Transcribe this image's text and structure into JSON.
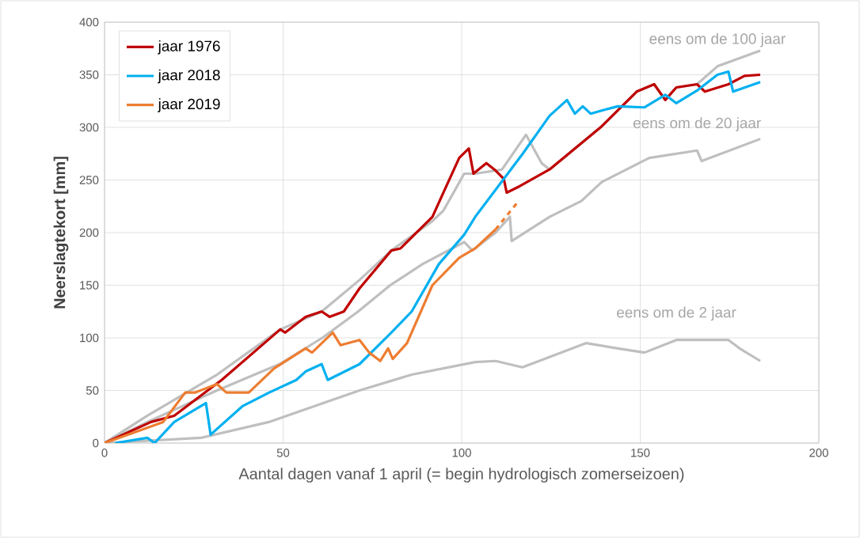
{
  "chart_data": {
    "type": "line",
    "xlabel": "Aantal dagen vanaf 1 april (= begin hydrologisch zomerseizoen)",
    "ylabel": "Neerslagtekort [mm]",
    "xlim": [
      0,
      200
    ],
    "xticks": [
      0,
      50,
      100,
      150,
      200
    ],
    "ylim": [
      0,
      400
    ],
    "yticks": [
      0,
      50,
      100,
      150,
      200,
      250,
      300,
      350,
      400
    ],
    "grid": true,
    "legend": "top left",
    "marker": "none",
    "series": [
      {
        "color": "#bfbfbf",
        "x": [
          0,
          12,
          31.5,
          49.2,
          60.8,
          71.4,
          80.3,
          91.8,
          94.9,
          100.7,
          103.8,
          111.3,
          118,
          122.4,
          124.6,
          139.2,
          149,
          153.9,
          157,
          160.1,
          165.9,
          171.6,
          183.6
        ],
        "values": [
          0,
          26,
          65,
          108,
          125,
          155,
          183,
          211,
          221,
          256,
          256,
          260,
          293,
          266,
          260,
          301,
          334,
          341,
          326,
          338,
          341,
          358,
          373
        ]
      },
      {
        "color": "#bfbfbf",
        "x": [
          0,
          12,
          31.5,
          42,
          49,
          61,
          71,
          80,
          89,
          100.7,
          103,
          109.5,
          113.5,
          114,
          124.6,
          133.5,
          139.2,
          152.5,
          165.9,
          167.2,
          183.6
        ],
        "values": [
          0,
          20,
          50,
          65,
          75,
          100,
          125,
          150,
          170,
          191,
          183,
          200,
          215,
          192,
          215,
          230,
          248,
          271,
          278,
          268,
          289
        ]
      },
      {
        "color": "#bfbfbf",
        "x": [
          0,
          27,
          46,
          71.4,
          86,
          103.8,
          109.5,
          117,
          134.8,
          143.7,
          151.2,
          160.1,
          174.7,
          177.8,
          183.6
        ],
        "values": [
          0,
          5,
          20,
          50,
          65,
          77,
          78,
          72,
          95,
          90,
          86,
          98,
          98,
          90,
          78
        ]
      },
      {
        "name": "jaar 1976",
        "color": "#c00000",
        "x": [
          0,
          13,
          19.5,
          32.8,
          49.2,
          50.6,
          56.3,
          60.8,
          63,
          67,
          71.4,
          80.3,
          82.9,
          91.8,
          99.3,
          102,
          103.3,
          106.9,
          109.5,
          111.8,
          112.6,
          116.2,
          124.6,
          139.2,
          149,
          153.9,
          157,
          160.1,
          165.9,
          168.1,
          174.7,
          179.2,
          183.6
        ],
        "values": [
          0,
          20,
          26,
          60,
          108,
          105,
          120,
          125,
          120,
          125,
          147,
          183,
          185,
          215,
          271,
          280,
          256,
          266,
          259,
          251,
          238,
          244,
          260,
          301,
          334,
          341,
          326,
          338,
          341,
          334,
          341,
          349,
          350
        ]
      },
      {
        "name": "jaar 2018",
        "color": "#00b0f0",
        "x": [
          3,
          12,
          14,
          19.5,
          28.4,
          29.7,
          38.6,
          46.1,
          53.7,
          56.3,
          60.8,
          62.5,
          71.4,
          80.3,
          86,
          93.6,
          100.7,
          103.8,
          117.1,
          124.6,
          129.5,
          131.7,
          133.9,
          136.1,
          139.2,
          143.7,
          151.2,
          157,
          160.1,
          165.9,
          171.6,
          174.7,
          176,
          183.6
        ],
        "values": [
          0,
          5,
          0,
          20,
          38,
          8,
          35,
          48,
          60,
          68,
          75,
          60,
          75,
          105,
          125,
          170,
          198,
          215,
          275,
          311,
          326,
          313,
          320,
          313,
          316,
          320,
          319,
          331,
          323,
          335,
          350,
          353,
          334,
          343
        ]
      },
      {
        "name": "jaar 2019",
        "color": "#ed7d31",
        "x": [
          0,
          16.4,
          22.6,
          25.3,
          31.5,
          34.1,
          40.4,
          47.5,
          56.3,
          58.1,
          63.9,
          66.1,
          71.4,
          74.1,
          77.2,
          79.4,
          80.7,
          84.7,
          91.8,
          99.3,
          103.8,
          109.5
        ],
        "values": [
          0,
          20,
          48,
          48,
          56,
          48,
          48,
          71,
          90,
          86,
          105,
          93,
          98,
          86,
          78,
          90,
          80,
          95,
          150,
          176,
          185,
          203
        ]
      },
      {
        "color": "#ed7d31",
        "line_style": "dashed",
        "x": [
          109.5,
          115.7
        ],
        "values": [
          203,
          229
        ]
      }
    ],
    "annotations": [
      {
        "text": "eens om de 100  jaar",
        "x": 171.6,
        "y": 358
      },
      {
        "text": "eens om de 20  jaar",
        "x": 165.9,
        "y": 278
      },
      {
        "text": "eens om de 2  jaar",
        "x": 160.1,
        "y": 98
      }
    ]
  }
}
